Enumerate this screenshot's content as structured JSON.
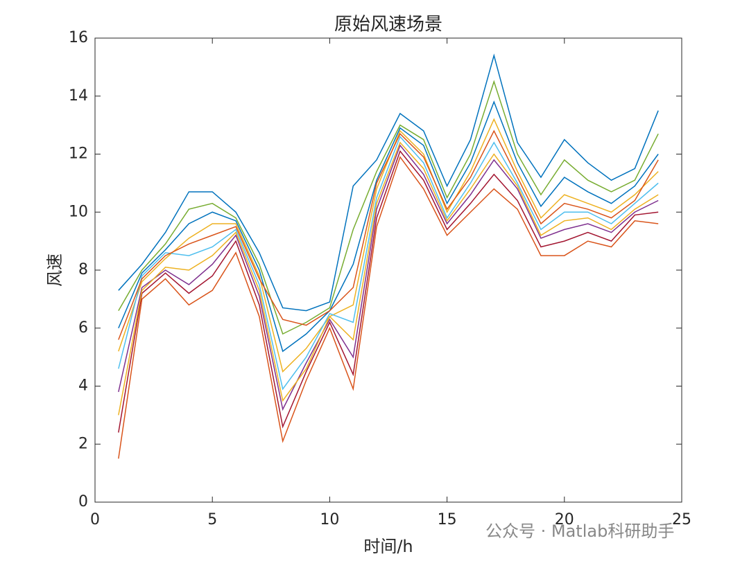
{
  "chart_data": {
    "type": "line",
    "title": "原始风速场景",
    "x_label": "时间/h",
    "y_label": "风速",
    "watermark": "公众号 · Matlab科研助手",
    "x": [
      1,
      2,
      3,
      4,
      5,
      6,
      7,
      8,
      9,
      10,
      11,
      12,
      13,
      14,
      15,
      16,
      17,
      18,
      19,
      20,
      21,
      22,
      23,
      24
    ],
    "xlim": [
      0,
      25
    ],
    "xticks": [
      0,
      5,
      10,
      15,
      20,
      25
    ],
    "ylim": [
      0,
      16
    ],
    "yticks": [
      0,
      2,
      4,
      6,
      8,
      10,
      12,
      14,
      16
    ],
    "series": [
      {
        "color": "#0072BD",
        "values": [
          7.3,
          8.2,
          9.3,
          10.7,
          10.7,
          10.0,
          8.6,
          6.7,
          6.6,
          6.9,
          10.9,
          11.8,
          13.4,
          12.8,
          10.9,
          12.5,
          15.4,
          12.4,
          11.2,
          12.5,
          11.7,
          11.1,
          11.5,
          13.5
        ]
      },
      {
        "color": "#D95319",
        "values": [
          1.5,
          7.0,
          7.7,
          6.8,
          7.3,
          8.6,
          6.4,
          2.1,
          4.2,
          6.0,
          3.9,
          9.5,
          11.9,
          10.8,
          9.2,
          10.0,
          10.8,
          10.1,
          8.5,
          8.5,
          9.0,
          8.8,
          9.7,
          9.6
        ]
      },
      {
        "color": "#EDB120",
        "values": [
          5.2,
          7.6,
          8.4,
          9.1,
          9.6,
          9.6,
          7.8,
          4.5,
          5.3,
          6.4,
          6.8,
          10.8,
          12.8,
          12.0,
          10.0,
          11.4,
          13.2,
          11.4,
          9.8,
          10.6,
          10.3,
          10.0,
          10.6,
          11.4
        ]
      },
      {
        "color": "#7E2F8E",
        "values": [
          3.8,
          7.4,
          8.0,
          7.5,
          8.2,
          9.2,
          7.1,
          3.2,
          4.8,
          6.3,
          5.0,
          10.1,
          12.3,
          11.3,
          9.6,
          10.6,
          11.8,
          10.8,
          9.1,
          9.4,
          9.6,
          9.3,
          10.0,
          10.4
        ]
      },
      {
        "color": "#77AC30",
        "values": [
          6.6,
          8.0,
          8.9,
          10.1,
          10.3,
          9.8,
          8.2,
          5.8,
          6.2,
          6.7,
          9.4,
          11.4,
          13.0,
          12.5,
          10.5,
          12.0,
          14.5,
          12.0,
          10.6,
          11.8,
          11.1,
          10.7,
          11.1,
          12.7
        ]
      },
      {
        "color": "#4DBEEE",
        "values": [
          4.6,
          7.8,
          8.6,
          8.5,
          8.8,
          9.4,
          7.5,
          3.9,
          5.0,
          6.5,
          6.2,
          10.5,
          12.6,
          11.7,
          9.8,
          11.0,
          12.4,
          11.0,
          9.4,
          10.0,
          10.0,
          9.6,
          10.3,
          11.0
        ]
      },
      {
        "color": "#A2142F",
        "values": [
          2.4,
          7.2,
          7.9,
          7.2,
          7.8,
          9.0,
          6.8,
          2.6,
          4.5,
          6.2,
          4.4,
          9.8,
          12.1,
          11.1,
          9.4,
          10.3,
          11.3,
          10.4,
          8.8,
          9.0,
          9.3,
          9.0,
          9.9,
          10.0
        ]
      },
      {
        "color": "#0072BD",
        "values": [
          6.0,
          7.9,
          8.7,
          9.6,
          10.0,
          9.7,
          8.0,
          5.2,
          5.8,
          6.6,
          8.2,
          11.1,
          12.9,
          12.3,
          10.3,
          11.7,
          13.8,
          11.7,
          10.2,
          11.2,
          10.7,
          10.3,
          10.9,
          12.0
        ]
      },
      {
        "color": "#D95319",
        "values": [
          5.6,
          7.7,
          8.5,
          8.9,
          9.2,
          9.5,
          7.7,
          6.3,
          6.1,
          6.6,
          7.4,
          11.0,
          12.7,
          11.9,
          10.1,
          11.2,
          12.8,
          11.2,
          9.6,
          10.3,
          10.1,
          9.8,
          10.4,
          11.8
        ]
      },
      {
        "color": "#EDB120",
        "values": [
          3.0,
          7.3,
          8.1,
          8.0,
          8.5,
          9.3,
          7.3,
          3.5,
          4.6,
          6.4,
          5.6,
          10.3,
          12.4,
          11.5,
          9.7,
          10.8,
          12.0,
          10.9,
          9.2,
          9.7,
          9.8,
          9.4,
          10.1,
          10.6
        ]
      }
    ]
  }
}
